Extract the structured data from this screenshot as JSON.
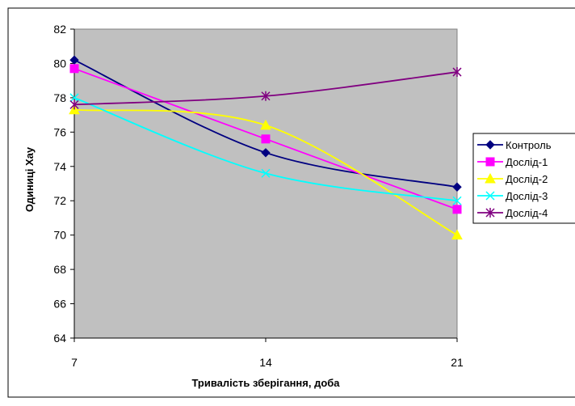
{
  "chart_data": {
    "type": "line",
    "title": "",
    "xlabel": "Тривалість зберігання, доба",
    "ylabel": "Одиниці Хау",
    "x": [
      7,
      14,
      21
    ],
    "x_tick_labels": [
      "7",
      "14",
      "21"
    ],
    "ylim": [
      64,
      82
    ],
    "y_ticks": [
      64,
      66,
      68,
      70,
      72,
      74,
      76,
      78,
      80,
      82
    ],
    "y_tick_labels": [
      "64",
      "66",
      "68",
      "70",
      "72",
      "74",
      "76",
      "78",
      "80",
      "82"
    ],
    "grid": false,
    "smoothed": true,
    "plot_background": "#c0c0c0",
    "legend_position": "right",
    "series": [
      {
        "name": "Контроль",
        "values": [
          80.2,
          74.8,
          72.8
        ],
        "color": "#000080",
        "marker": "diamond"
      },
      {
        "name": "Дослід-1",
        "values": [
          79.7,
          75.6,
          71.5
        ],
        "color": "#ff00ff",
        "marker": "square"
      },
      {
        "name": "Дослід-2",
        "values": [
          77.3,
          76.4,
          70.0
        ],
        "color": "#ffff00",
        "marker": "triangle"
      },
      {
        "name": "Дослід-3",
        "values": [
          78.0,
          73.6,
          72.0
        ],
        "color": "#00ffff",
        "marker": "x"
      },
      {
        "name": "Дослід-4",
        "values": [
          77.6,
          78.1,
          79.5
        ],
        "color": "#800080",
        "marker": "star"
      }
    ]
  }
}
